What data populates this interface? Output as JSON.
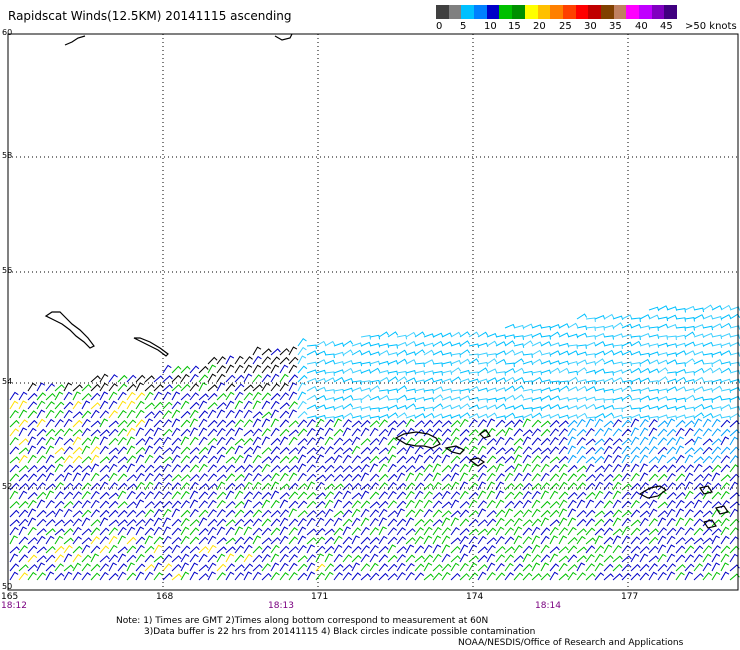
{
  "title": "Rapidscat Winds(12.5KM) 20141115 ascending",
  "legend": {
    "colors": [
      "#404040",
      "#808080",
      "#00c0ff",
      "#0080ff",
      "#0000c8",
      "#00c000",
      "#009000",
      "#ffff00",
      "#ffc000",
      "#ff8000",
      "#ff4000",
      "#ff0000",
      "#c00000",
      "#804000",
      "#c08060",
      "#ff00ff",
      "#c000ff",
      "#8000c0",
      "#400080"
    ],
    "labels": [
      "0",
      "5",
      "10",
      "15",
      "20",
      "25",
      "30",
      "35",
      "40",
      "45",
      ">50 knots"
    ]
  },
  "latitudes": [
    "60",
    "58",
    "56",
    "54",
    "52",
    "50"
  ],
  "longitudes": [
    "165",
    "168",
    "171",
    "174",
    "177"
  ],
  "times": [
    "18:12",
    "18:13",
    "18:14"
  ],
  "notes": {
    "line1": "Note: 1) Times are GMT 2)Times along bottom correspond to measurement at 60N",
    "line2": "3)Data buffer is 22 hrs from 20141115 4) Black circles indicate possible contamination",
    "credit": "NOAA/NESDIS/Office of Research and Applications"
  }
}
